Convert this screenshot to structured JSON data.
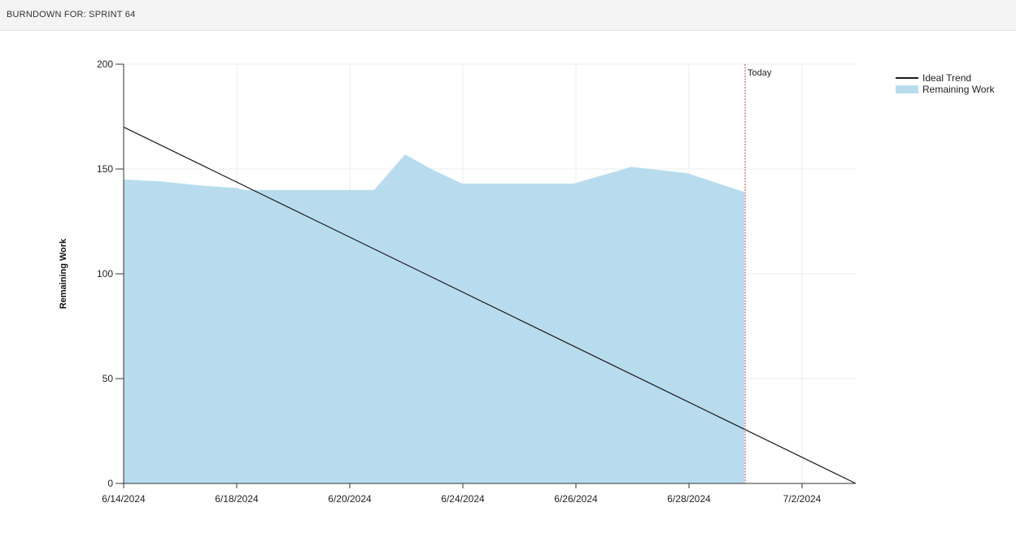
{
  "header": {
    "title": "BURNDOWN FOR: SPRINT 64"
  },
  "chart_data": {
    "type": "area",
    "ylabel": "Remaining Work",
    "ylim": [
      0,
      200
    ],
    "yticks": [
      0,
      50,
      100,
      150,
      200
    ],
    "xlim": [
      "6/14/2024",
      "7/3/2024"
    ],
    "xtick_labels": [
      "6/14/2024",
      "6/18/2024",
      "6/20/2024",
      "6/24/2024",
      "6/26/2024",
      "6/28/2024",
      "7/2/2024"
    ],
    "grid": true,
    "legend": "top-right",
    "today_label": "Today",
    "today_date": "6/30/2024",
    "series": [
      {
        "name": "Remaining Work",
        "color": "#b8dcee",
        "x": [
          "6/14/2024",
          "6/15/2024",
          "6/16/2024",
          "6/17/2024",
          "6/18/2024",
          "6/19/2024",
          "6/20/2024",
          "6/21/2024",
          "6/22/2024",
          "6/23/2024",
          "6/24/2024",
          "6/25/2024",
          "6/26/2024",
          "6/27/2024",
          "6/28/2024",
          "6/29/2024",
          "6/30/2024"
        ],
        "values": [
          145,
          144,
          142,
          141,
          140,
          140,
          140,
          140,
          157,
          150,
          143,
          143,
          143,
          143,
          151,
          148,
          139
        ]
      },
      {
        "name": "Ideal Trend",
        "color": "#1a1a1a",
        "x": [
          "6/14/2024",
          "7/3/2024"
        ],
        "values": [
          170,
          0
        ]
      }
    ]
  }
}
